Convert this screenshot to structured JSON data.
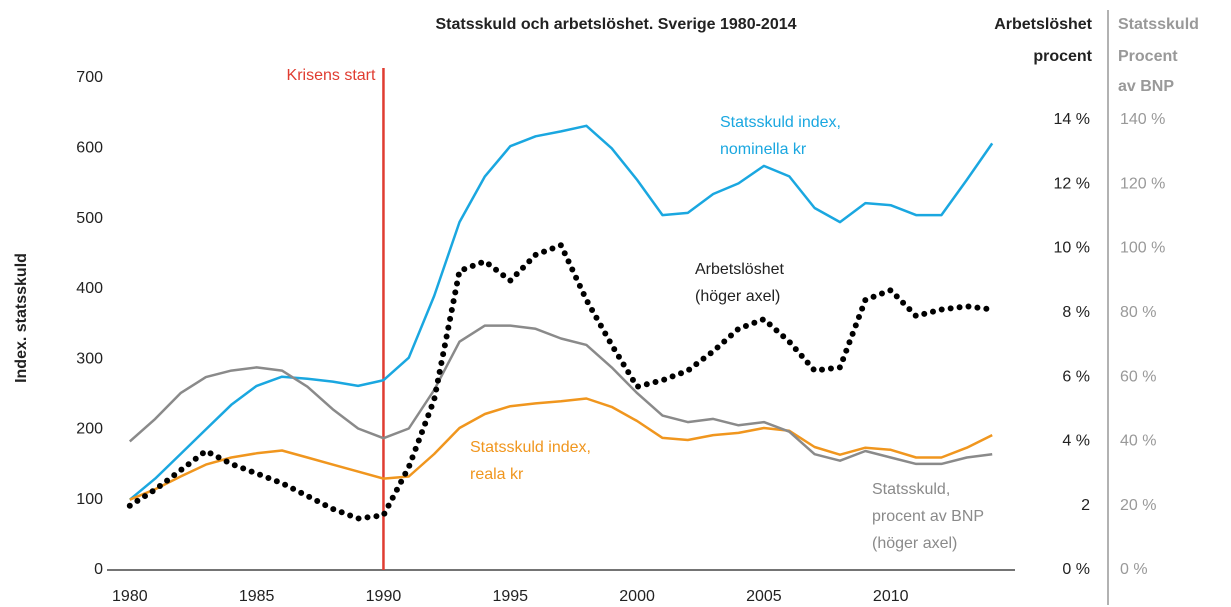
{
  "chart_data": {
    "type": "line",
    "title": "Statsskuld och arbetslöshet. Sverige 1980-2014",
    "ylabel": "Index. statsskuld",
    "y2label": [
      "Arbetslöshet",
      "procent"
    ],
    "y3label": [
      "Statsskuld",
      "Procent",
      "av BNP"
    ],
    "x": [
      1980,
      1981,
      1982,
      1983,
      1984,
      1985,
      1986,
      1987,
      1988,
      1989,
      1990,
      1991,
      1992,
      1993,
      1994,
      1995,
      1996,
      1997,
      1998,
      1999,
      2000,
      2001,
      2002,
      2003,
      2004,
      2005,
      2006,
      2007,
      2008,
      2009,
      2010,
      2011,
      2012,
      2013,
      2014
    ],
    "xlim": [
      1979.1,
      2014.9
    ],
    "xticks": [
      1980,
      1985,
      1990,
      1995,
      2000,
      2005,
      2010
    ],
    "ylim": [
      0,
      700
    ],
    "yticks": [
      0,
      100,
      200,
      300,
      400,
      500,
      600,
      700
    ],
    "y2lim": [
      0,
      15.3
    ],
    "y2ticks": [
      {
        "value": 0,
        "label": "0 %"
      },
      2,
      {
        "value": 4,
        "label": "4 %"
      },
      {
        "value": 6,
        "label": "6 %"
      },
      {
        "value": 8,
        "label": "8 %"
      },
      {
        "value": 10,
        "label": "10 %"
      },
      {
        "value": 12,
        "label": "12 %"
      },
      {
        "value": 14,
        "label": "14 %"
      }
    ],
    "y3lim": [
      0,
      153
    ],
    "y3ticks": [
      {
        "value": 0,
        "label": "0 %"
      },
      {
        "value": 20,
        "label": "20 %"
      },
      {
        "value": 40,
        "label": "40 %"
      },
      {
        "value": 60,
        "label": "60 %"
      },
      {
        "value": 80,
        "label": "80 %"
      },
      {
        "value": 100,
        "label": "100 %"
      },
      {
        "value": 120,
        "label": "120 %"
      },
      {
        "value": 140,
        "label": "140 %"
      }
    ],
    "annotations": [
      {
        "text": "Krisens start",
        "x": 1990,
        "color": "#e03c31"
      }
    ],
    "series": [
      {
        "name": [
          "Statsskuld index,",
          "nominella kr"
        ],
        "color": "#1aa7e0",
        "values": [
          100,
          130,
          165,
          200,
          235,
          262,
          275,
          272,
          268,
          262,
          270,
          302,
          390,
          495,
          560,
          603,
          617,
          624,
          632,
          600,
          555,
          505,
          508,
          535,
          550,
          575,
          560,
          515,
          495,
          522,
          519,
          505,
          505,
          555,
          607
        ]
      },
      {
        "name": [
          "Statsskuld index,",
          "reala kr"
        ],
        "color": "#f0961e",
        "values": [
          100,
          115,
          133,
          150,
          160,
          166,
          170,
          160,
          150,
          140,
          130,
          133,
          165,
          202,
          222,
          233,
          237,
          240,
          244,
          232,
          212,
          188,
          185,
          192,
          195,
          202,
          198,
          175,
          164,
          174,
          171,
          160,
          160,
          174,
          192
        ]
      },
      {
        "name": [
          "Statsskuld,",
          "procent av BNP",
          "(höger axel)"
        ],
        "color": "#8a8a8a",
        "axis": "y3",
        "values": [
          40,
          47,
          55,
          60,
          62,
          63,
          62,
          57,
          50,
          44,
          41,
          44,
          56,
          71,
          76,
          76,
          75,
          72,
          70,
          63,
          55,
          48,
          46,
          47,
          45,
          46,
          43,
          36,
          34,
          37,
          35,
          33,
          33,
          35,
          36
        ]
      },
      {
        "name": [
          "Arbetslöshet",
          "(höger axel)"
        ],
        "color": "#000000",
        "axis": "y2",
        "dotted": true,
        "values": [
          2.0,
          2.5,
          3.1,
          3.7,
          3.3,
          3.0,
          2.7,
          2.3,
          1.9,
          1.6,
          1.7,
          3.2,
          5.3,
          9.3,
          9.6,
          9.0,
          9.8,
          10.1,
          8.4,
          7.0,
          5.7,
          5.9,
          6.2,
          6.8,
          7.5,
          7.8,
          7.1,
          6.2,
          6.3,
          8.4,
          8.7,
          7.9,
          8.1,
          8.2,
          8.1
        ]
      }
    ]
  }
}
